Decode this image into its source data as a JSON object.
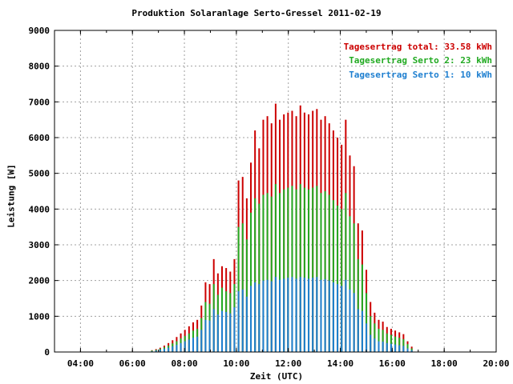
{
  "chart_data": {
    "type": "bar",
    "title": "Produktion Solaranlage Serto-Gressel 2011-02-19",
    "xlabel": "Zeit (UTC)",
    "ylabel": "Leistung [W]",
    "xlim": [
      "03:00",
      "20:00"
    ],
    "ylim": [
      0,
      9000
    ],
    "x_tick_labels": [
      "04:00",
      "06:00",
      "08:00",
      "10:00",
      "12:00",
      "14:00",
      "16:00",
      "18:00",
      "20:00"
    ],
    "y_tick_labels": [
      "0",
      "1000",
      "2000",
      "3000",
      "4000",
      "5000",
      "6000",
      "7000",
      "8000",
      "9000"
    ],
    "grid": true,
    "legend_position": "top-right",
    "legend": [
      {
        "text": "Tagesertrag total: 33.58 kWh",
        "color": "#cc0000"
      },
      {
        "text": "Tagesertrag Serto 2: 23 kWh",
        "color": "#22aa22"
      },
      {
        "text": "Tagesertrag Serto 1: 10 kWh",
        "color": "#1e7fd0"
      }
    ],
    "series": [
      {
        "name": "total",
        "color": "#cc0000",
        "values": [
          50,
          80,
          120,
          180,
          250,
          330,
          420,
          520,
          620,
          720,
          830,
          900,
          1300,
          1950,
          1900,
          2600,
          2200,
          2400,
          2350,
          2250,
          2600,
          4800,
          4900,
          4300,
          5300,
          6200,
          5700,
          6500,
          6600,
          6400,
          6950,
          6500,
          6650,
          6700,
          6750,
          6600,
          6900,
          6700,
          6650,
          6750,
          6800,
          6500,
          6600,
          6400,
          6200,
          6000,
          5800,
          6500,
          5500,
          5200,
          3600,
          3400,
          2300,
          1400,
          1100,
          900,
          850,
          700,
          650,
          600,
          550,
          500,
          300,
          150
        ]
      },
      {
        "name": "Serto 2",
        "color": "#22aa22",
        "values": [
          40,
          60,
          90,
          130,
          180,
          240,
          300,
          380,
          450,
          520,
          600,
          650,
          950,
          1400,
          1350,
          1900,
          1600,
          1800,
          1700,
          1650,
          1900,
          3500,
          3600,
          3150,
          3900,
          4300,
          4150,
          4400,
          4450,
          4350,
          4700,
          4450,
          4550,
          4600,
          4650,
          4550,
          4700,
          4600,
          4550,
          4600,
          4650,
          4450,
          4500,
          4400,
          4250,
          4100,
          4000,
          4450,
          3800,
          3600,
          2600,
          2450,
          1650,
          1000,
          800,
          650,
          620,
          520,
          480,
          430,
          400,
          360,
          220,
          100
        ]
      },
      {
        "name": "Serto 1",
        "color": "#1e7fd0",
        "values": [
          20,
          40,
          60,
          90,
          120,
          160,
          200,
          250,
          300,
          350,
          400,
          430,
          620,
          900,
          880,
          1200,
          1050,
          1150,
          1120,
          1080,
          1250,
          1700,
          1750,
          1550,
          1850,
          1950,
          1900,
          2000,
          2020,
          1980,
          2100,
          2020,
          2050,
          2080,
          2100,
          2050,
          2100,
          2080,
          2050,
          2080,
          2100,
          2020,
          2040,
          2000,
          1950,
          1900,
          1850,
          2020,
          1750,
          1650,
          1200,
          1150,
          800,
          480,
          380,
          300,
          290,
          250,
          230,
          210,
          190,
          170,
          100,
          50
        ]
      }
    ],
    "x_range_of_bars": [
      "06:45",
      "16:45"
    ]
  }
}
